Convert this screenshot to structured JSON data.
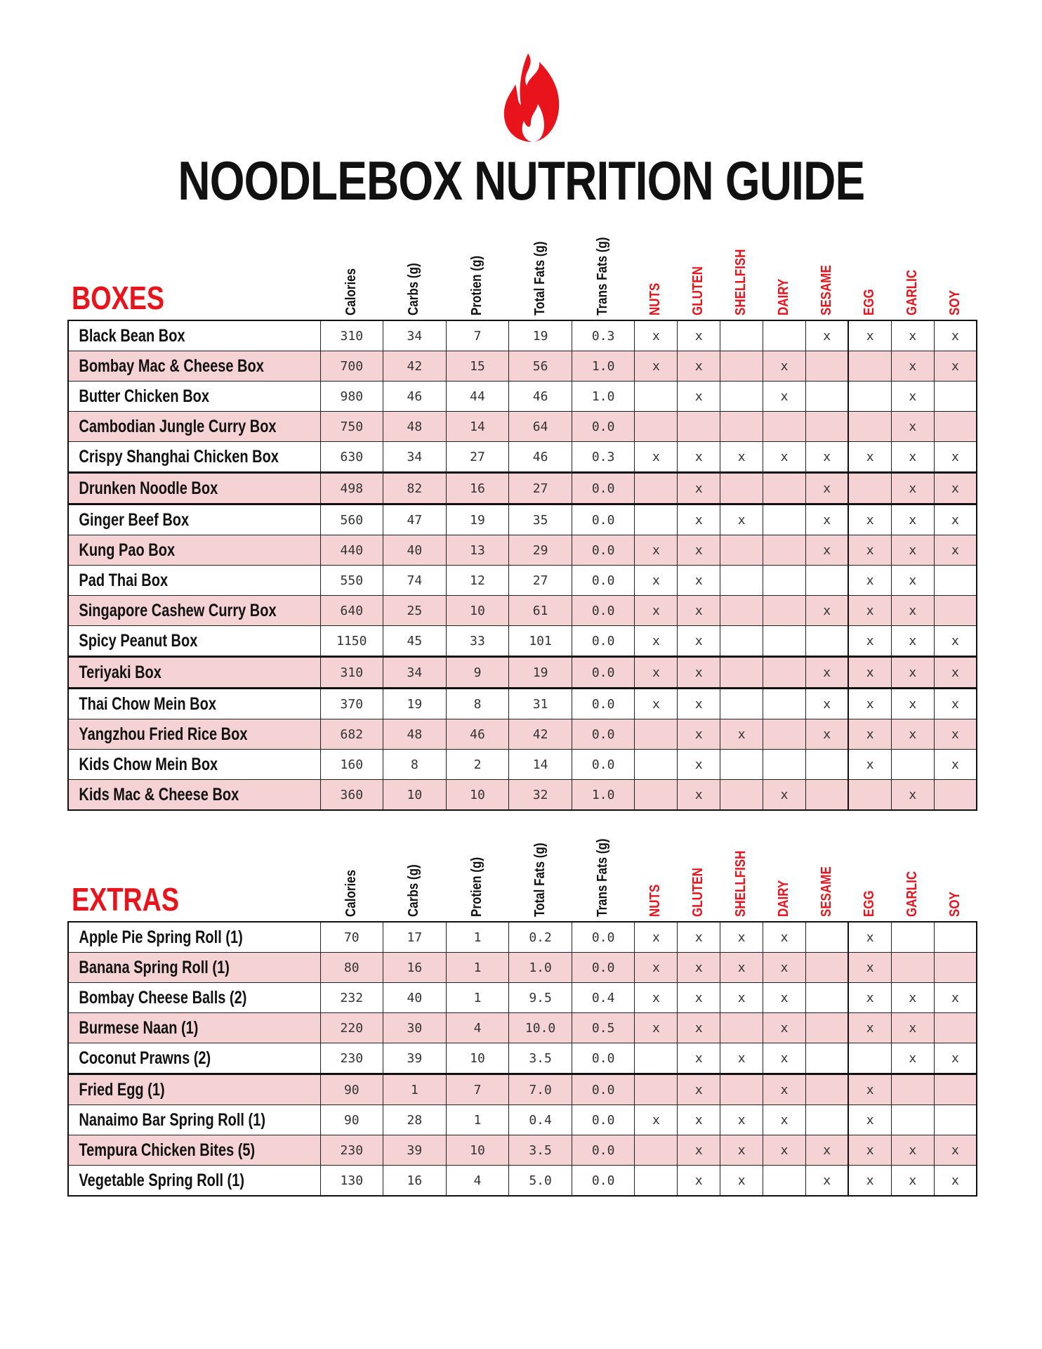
{
  "title": "NOODLEBOX NUTRITION GUIDE",
  "colors": {
    "accent": "#e8131b",
    "row_alt": "#f5d3d5"
  },
  "logo_icon": "flame-icon",
  "columns": {
    "nutrition": [
      "Calories",
      "Carbs (g)",
      "Protien (g)",
      "Total Fats (g)",
      "Trans Fats (g)"
    ],
    "allergens": [
      "NUTS",
      "GLUTEN",
      "SHELLFISH",
      "DAIRY",
      "SESAME",
      "EGG",
      "GARLIC",
      "SOY"
    ]
  },
  "sections": [
    {
      "label": "BOXES",
      "rows": [
        {
          "name": "Black Bean Box",
          "values": [
            "310",
            "34",
            "7",
            "19",
            "0.3"
          ],
          "allergens": [
            "x",
            "x",
            "",
            "",
            "x",
            "x",
            "x",
            "x"
          ]
        },
        {
          "name": "Bombay Mac & Cheese Box",
          "values": [
            "700",
            "42",
            "15",
            "56",
            "1.0"
          ],
          "allergens": [
            "x",
            "x",
            "",
            "x",
            "",
            "",
            "x",
            "x"
          ]
        },
        {
          "name": "Butter Chicken Box",
          "values": [
            "980",
            "46",
            "44",
            "46",
            "1.0"
          ],
          "allergens": [
            "",
            "x",
            "",
            "x",
            "",
            "",
            "x",
            ""
          ]
        },
        {
          "name": "Cambodian Jungle Curry Box",
          "values": [
            "750",
            "48",
            "14",
            "64",
            "0.0"
          ],
          "allergens": [
            "",
            "",
            "",
            "",
            "",
            "",
            "x",
            ""
          ]
        },
        {
          "name": "Crispy Shanghai Chicken Box",
          "values": [
            "630",
            "34",
            "27",
            "46",
            "0.3"
          ],
          "allergens": [
            "x",
            "x",
            "x",
            "x",
            "x",
            "x",
            "x",
            "x"
          ]
        },
        {
          "name": "Drunken Noodle Box",
          "values": [
            "498",
            "82",
            "16",
            "27",
            "0.0"
          ],
          "allergens": [
            "",
            "x",
            "",
            "",
            "x",
            "",
            "x",
            "x"
          ]
        },
        {
          "name": "Ginger Beef Box",
          "values": [
            "560",
            "47",
            "19",
            "35",
            "0.0"
          ],
          "allergens": [
            "",
            "x",
            "x",
            "",
            "x",
            "x",
            "x",
            "x"
          ]
        },
        {
          "name": "Kung Pao Box",
          "values": [
            "440",
            "40",
            "13",
            "29",
            "0.0"
          ],
          "allergens": [
            "x",
            "x",
            "",
            "",
            "x",
            "x",
            "x",
            "x"
          ]
        },
        {
          "name": "Pad Thai Box",
          "values": [
            "550",
            "74",
            "12",
            "27",
            "0.0"
          ],
          "allergens": [
            "x",
            "x",
            "",
            "",
            "",
            "x",
            "x",
            ""
          ]
        },
        {
          "name": "Singapore Cashew Curry Box",
          "values": [
            "640",
            "25",
            "10",
            "61",
            "0.0"
          ],
          "allergens": [
            "x",
            "x",
            "",
            "",
            "x",
            "x",
            "x",
            ""
          ]
        },
        {
          "name": "Spicy Peanut Box",
          "values": [
            "1150",
            "45",
            "33",
            "101",
            "0.0"
          ],
          "allergens": [
            "x",
            "x",
            "",
            "",
            "",
            "x",
            "x",
            "x"
          ]
        },
        {
          "name": "Teriyaki Box",
          "values": [
            "310",
            "34",
            "9",
            "19",
            "0.0"
          ],
          "allergens": [
            "x",
            "x",
            "",
            "",
            "x",
            "x",
            "x",
            "x"
          ]
        },
        {
          "name": "Thai Chow Mein Box",
          "values": [
            "370",
            "19",
            "8",
            "31",
            "0.0"
          ],
          "allergens": [
            "x",
            "x",
            "",
            "",
            "x",
            "x",
            "x",
            "x"
          ]
        },
        {
          "name": "Yangzhou Fried Rice Box",
          "values": [
            "682",
            "48",
            "46",
            "42",
            "0.0"
          ],
          "allergens": [
            "",
            "x",
            "x",
            "",
            "x",
            "x",
            "x",
            "x"
          ]
        },
        {
          "name": "Kids Chow Mein Box",
          "values": [
            "160",
            "8",
            "2",
            "14",
            "0.0"
          ],
          "allergens": [
            "",
            "x",
            "",
            "",
            "",
            "x",
            "",
            "x"
          ]
        },
        {
          "name": "Kids Mac & Cheese Box",
          "values": [
            "360",
            "10",
            "10",
            "32",
            "1.0"
          ],
          "allergens": [
            "",
            "x",
            "",
            "x",
            "",
            "",
            "x",
            ""
          ]
        }
      ]
    },
    {
      "label": "EXTRAS",
      "rows": [
        {
          "name": "Apple Pie Spring Roll (1)",
          "values": [
            "70",
            "17",
            "1",
            "0.2",
            "0.0"
          ],
          "allergens": [
            "x",
            "x",
            "x",
            "x",
            "",
            "x",
            "",
            ""
          ]
        },
        {
          "name": "Banana Spring Roll (1)",
          "values": [
            "80",
            "16",
            "1",
            "1.0",
            "0.0"
          ],
          "allergens": [
            "x",
            "x",
            "x",
            "x",
            "",
            "x",
            "",
            ""
          ]
        },
        {
          "name": "Bombay Cheese Balls (2)",
          "values": [
            "232",
            "40",
            "1",
            "9.5",
            "0.4"
          ],
          "allergens": [
            "x",
            "x",
            "x",
            "x",
            "",
            "x",
            "x",
            "x"
          ]
        },
        {
          "name": "Burmese Naan (1)",
          "values": [
            "220",
            "30",
            "4",
            "10.0",
            "0.5"
          ],
          "allergens": [
            "x",
            "x",
            "",
            "x",
            "",
            "x",
            "x",
            ""
          ]
        },
        {
          "name": "Coconut Prawns (2)",
          "values": [
            "230",
            "39",
            "10",
            "3.5",
            "0.0"
          ],
          "allergens": [
            "",
            "x",
            "x",
            "x",
            "",
            "",
            "x",
            "x"
          ]
        },
        {
          "name": "Fried Egg (1)",
          "values": [
            "90",
            "1",
            "7",
            "7.0",
            "0.0"
          ],
          "allergens": [
            "",
            "x",
            "",
            "x",
            "",
            "x",
            "",
            ""
          ]
        },
        {
          "name": "Nanaimo Bar Spring Roll (1)",
          "values": [
            "90",
            "28",
            "1",
            "0.4",
            "0.0"
          ],
          "allergens": [
            "x",
            "x",
            "x",
            "x",
            "",
            "x",
            "",
            ""
          ]
        },
        {
          "name": "Tempura Chicken Bites (5)",
          "values": [
            "230",
            "39",
            "10",
            "3.5",
            "0.0"
          ],
          "allergens": [
            "",
            "x",
            "x",
            "x",
            "x",
            "x",
            "x",
            "x"
          ]
        },
        {
          "name": "Vegetable Spring Roll (1)",
          "values": [
            "130",
            "16",
            "4",
            "5.0",
            "0.0"
          ],
          "allergens": [
            "",
            "x",
            "x",
            "",
            "x",
            "x",
            "x",
            "x"
          ]
        }
      ]
    }
  ]
}
